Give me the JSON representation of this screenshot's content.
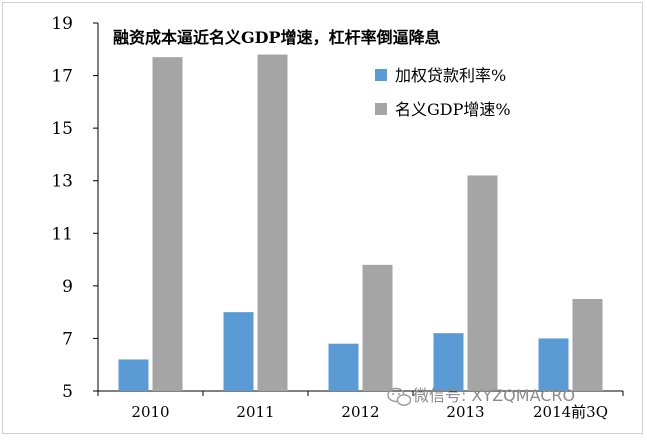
{
  "chart_data": {
    "type": "bar",
    "title": "融资成本逼近名义GDP增速，杠杆率倒逼降息",
    "categories": [
      "2010",
      "2011",
      "2012",
      "2013",
      "2014前3Q"
    ],
    "series": [
      {
        "name": "加权贷款利率%",
        "values": [
          6.2,
          8.0,
          6.8,
          7.2,
          7.0
        ],
        "color": "#5b9bd5"
      },
      {
        "name": "名义GDP增速%",
        "values": [
          17.7,
          17.8,
          9.8,
          13.2,
          8.5
        ],
        "color": "#a5a5a5"
      }
    ],
    "ylim": [
      5,
      19
    ],
    "yticks": [
      5,
      7,
      9,
      11,
      13,
      15,
      17,
      19
    ],
    "grid": false,
    "legend_position": "upper-right"
  },
  "watermark": {
    "text": "微信号: XYZQMACRO",
    "icon": "wechat-icon"
  }
}
